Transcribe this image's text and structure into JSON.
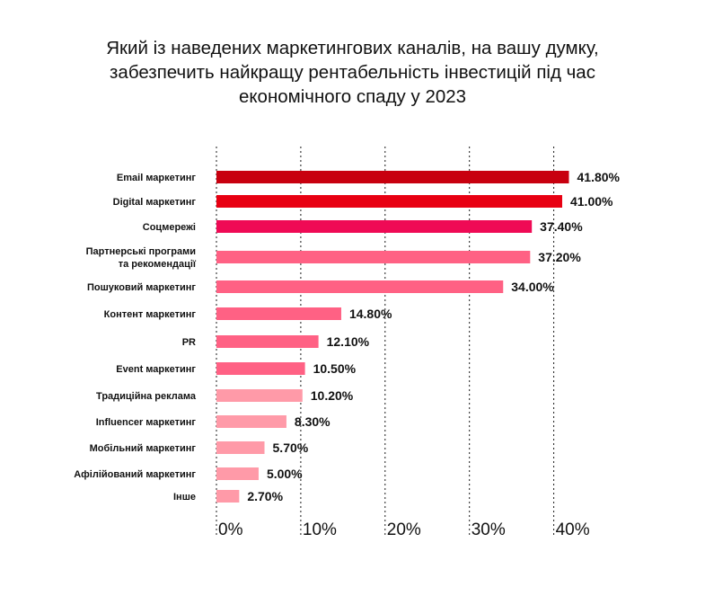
{
  "chart_data": {
    "type": "bar",
    "orientation": "horizontal",
    "title_lines": [
      "Який із наведених маркетингових каналів, на вашу думку,",
      "забезпечить найкращу рентабельність інвестицій під час",
      "економічного спаду у 2023"
    ],
    "categories": [
      [
        "Email маркетинг"
      ],
      [
        "Digital маркетинг"
      ],
      [
        "Соцмережі"
      ],
      [
        "Партнерські програми",
        "та рекомендації"
      ],
      [
        "Пошуковий маркетинг"
      ],
      [
        "Контент маркетинг"
      ],
      [
        "PR"
      ],
      [
        "Event маркетинг"
      ],
      [
        "Традиційна реклама"
      ],
      [
        "Influencer маркетинг"
      ],
      [
        "Мобільний маркетинг"
      ],
      [
        "Афілійований маркетинг"
      ],
      [
        "Інше"
      ]
    ],
    "values": [
      41.8,
      41.0,
      37.4,
      37.2,
      34.0,
      14.8,
      12.1,
      10.5,
      10.2,
      8.3,
      5.7,
      5.0,
      2.7
    ],
    "value_labels": [
      "41.80%",
      "41.00%",
      "37.40%",
      "37.20%",
      "34.00%",
      "14.80%",
      "12.10%",
      "10.50%",
      "10.20%",
      "8.30%",
      "5.70%",
      "5.00%",
      "2.70%"
    ],
    "bar_colors": [
      "#c8000f",
      "#e80012",
      "#ef0a55",
      "#ff6184",
      "#ff6184",
      "#ff6184",
      "#ff6184",
      "#ff6184",
      "#ff9aa8",
      "#ff9aa8",
      "#ff9aa8",
      "#ff9aa8",
      "#ff9aa8"
    ],
    "x_ticks": [
      0,
      10,
      20,
      30,
      40
    ],
    "x_tick_labels": [
      "0%",
      "10%",
      "20%",
      "30%",
      "40%"
    ],
    "xlim": [
      0,
      41.8
    ],
    "grid": true,
    "legend": "none"
  }
}
